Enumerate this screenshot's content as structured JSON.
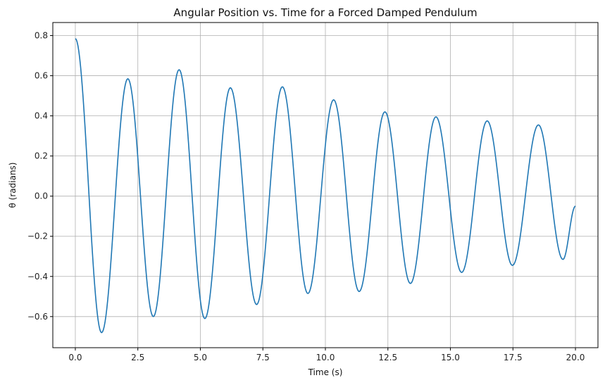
{
  "chart_data": {
    "type": "line",
    "title": "Angular Position vs. Time for a Forced Damped Pendulum",
    "xlabel": "Time (s)",
    "ylabel": "θ (radians)",
    "xlim": [
      -0.9,
      20.9
    ],
    "ylim": [
      -0.755,
      0.865
    ],
    "xticks": [
      0.0,
      2.5,
      5.0,
      7.5,
      10.0,
      12.5,
      15.0,
      17.5,
      20.0
    ],
    "xtick_labels": [
      "0.0",
      "2.5",
      "5.0",
      "7.5",
      "10.0",
      "12.5",
      "15.0",
      "17.5",
      "20.0"
    ],
    "yticks": [
      -0.6,
      -0.4,
      -0.2,
      0.0,
      0.2,
      0.4,
      0.6,
      0.8
    ],
    "ytick_labels": [
      "−0.6",
      "−0.4",
      "−0.2",
      "0.0",
      "0.2",
      "0.4",
      "0.6",
      "0.8"
    ],
    "grid": true,
    "series": [
      {
        "color": "#1f77b4",
        "extrema": [
          [
            0.0,
            0.785
          ],
          [
            1.05,
            -0.68
          ],
          [
            2.1,
            0.585
          ],
          [
            3.12,
            -0.6
          ],
          [
            4.15,
            0.63
          ],
          [
            5.18,
            -0.61
          ],
          [
            6.2,
            0.54
          ],
          [
            7.25,
            -0.54
          ],
          [
            8.28,
            0.545
          ],
          [
            9.3,
            -0.485
          ],
          [
            10.33,
            0.48
          ],
          [
            11.35,
            -0.475
          ],
          [
            12.38,
            0.42
          ],
          [
            13.4,
            -0.435
          ],
          [
            14.42,
            0.395
          ],
          [
            15.45,
            -0.38
          ],
          [
            16.47,
            0.375
          ],
          [
            17.48,
            -0.345
          ],
          [
            18.52,
            0.355
          ],
          [
            19.5,
            -0.315
          ],
          [
            20.0,
            -0.05
          ]
        ]
      }
    ]
  }
}
